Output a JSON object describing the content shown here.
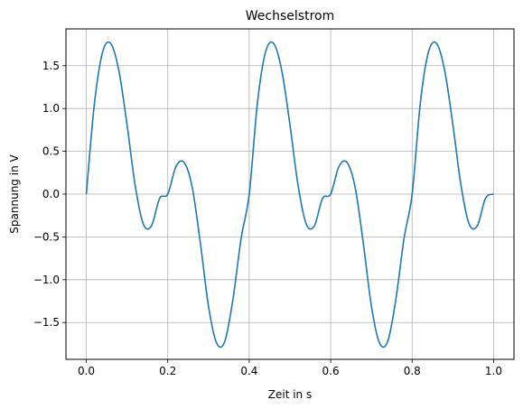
{
  "chart_data": {
    "type": "line",
    "title": "Wechselstrom",
    "xlabel": "Zeit in s",
    "ylabel": "Spannung in V",
    "xlim": [
      -0.05,
      1.05
    ],
    "ylim": [
      -1.93,
      1.93
    ],
    "grid": true,
    "xticks": [
      0.0,
      0.2,
      0.4,
      0.6,
      0.8,
      1.0
    ],
    "xtick_labels": [
      "0.0",
      "0.2",
      "0.4",
      "0.6",
      "0.8",
      "1.0"
    ],
    "yticks": [
      -1.5,
      -1.0,
      -0.5,
      0.0,
      0.5,
      1.0,
      1.5
    ],
    "ytick_labels": [
      "−1.5",
      "−1.0",
      "−0.5",
      "0.0",
      "0.5",
      "1.0",
      "1.5"
    ],
    "series": [
      {
        "color": "#1f77b4",
        "x": [
          0.0,
          0.02,
          0.04,
          0.06,
          0.08,
          0.1,
          0.12,
          0.14,
          0.16,
          0.18,
          0.2,
          0.22,
          0.24,
          0.26,
          0.28,
          0.3,
          0.32,
          0.34,
          0.36,
          0.38,
          0.4,
          0.42,
          0.44,
          0.46,
          0.48,
          0.5,
          0.52,
          0.54,
          0.56,
          0.58,
          0.6,
          0.62,
          0.64,
          0.66,
          0.68,
          0.7,
          0.72,
          0.74,
          0.76,
          0.78,
          0.8,
          0.82,
          0.84,
          0.86,
          0.88,
          0.9,
          0.92,
          0.94,
          0.96,
          0.98,
          1.0
        ],
        "y": [
          0.0,
          1.06,
          1.66,
          1.76,
          1.44,
          0.81,
          0.1,
          -0.35,
          -0.37,
          -0.05,
          0.0,
          0.32,
          0.37,
          0.08,
          -0.57,
          -1.31,
          -1.74,
          -1.72,
          -1.23,
          -0.52,
          0.0,
          1.06,
          1.66,
          1.76,
          1.44,
          0.81,
          0.1,
          -0.35,
          -0.37,
          -0.05,
          0.0,
          0.32,
          0.37,
          0.08,
          -0.57,
          -1.31,
          -1.74,
          -1.72,
          -1.23,
          -0.52,
          0.0,
          1.06,
          1.66,
          1.76,
          1.44,
          0.81,
          0.1,
          -0.35,
          -0.37,
          -0.05,
          0.0
        ]
      }
    ]
  }
}
